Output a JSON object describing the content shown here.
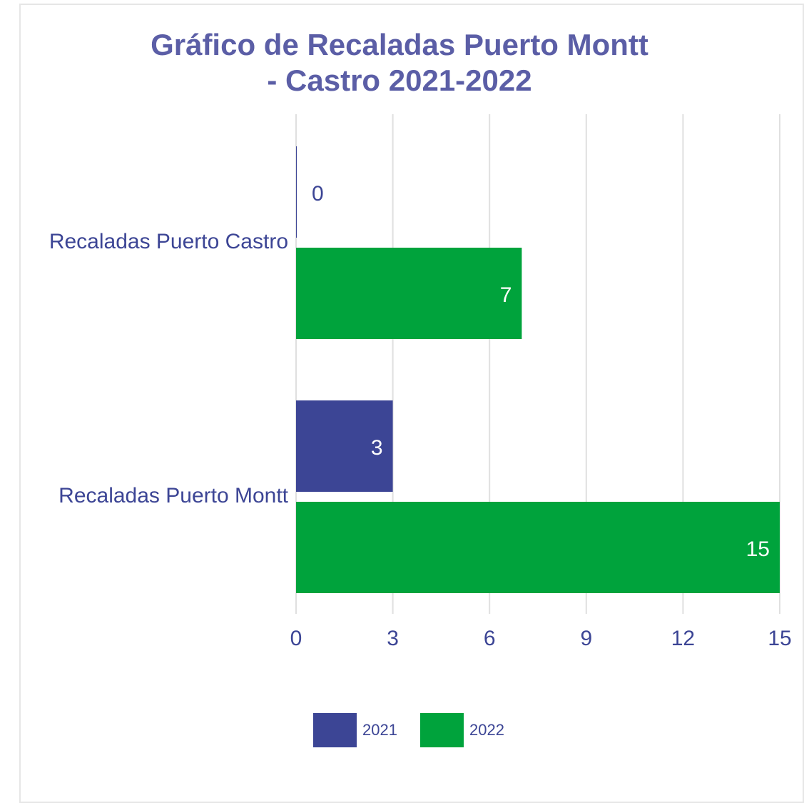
{
  "chart_data": {
    "type": "bar",
    "orientation": "horizontal",
    "title": "Gráfico de Recaladas Puerto Montt - Castro 2021-2022",
    "categories": [
      "Recaladas Puerto Castro",
      "Recaladas Puerto Montt"
    ],
    "series": [
      {
        "name": "2021",
        "color": "#3c4595",
        "values": [
          0,
          3
        ]
      },
      {
        "name": "2022",
        "color": "#00a33c",
        "values": [
          7,
          15
        ]
      }
    ],
    "xlim": [
      0,
      15
    ],
    "xticks": [
      0,
      3,
      6,
      9,
      12,
      15
    ],
    "grid": true,
    "legend": "bottom"
  }
}
